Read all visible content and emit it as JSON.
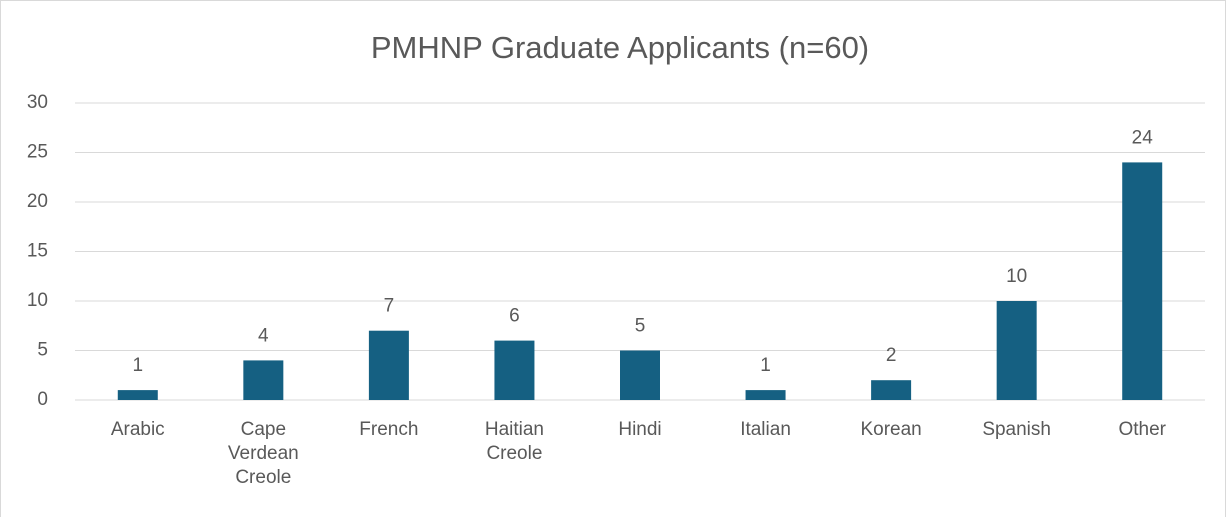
{
  "chart_data": {
    "type": "bar",
    "title": "PMHNP Graduate Applicants (n=60)",
    "categories": [
      "Arabic",
      "Cape Verdean Creole",
      "French",
      "Haitian Creole",
      "Hindi",
      "Italian",
      "Korean",
      "Spanish",
      "Other"
    ],
    "values": [
      1,
      4,
      7,
      6,
      5,
      1,
      2,
      10,
      24
    ],
    "color": "#156082",
    "ylim": [
      0,
      30
    ],
    "yticks": [
      0,
      5,
      10,
      15,
      20,
      25,
      30
    ],
    "grid": true
  }
}
